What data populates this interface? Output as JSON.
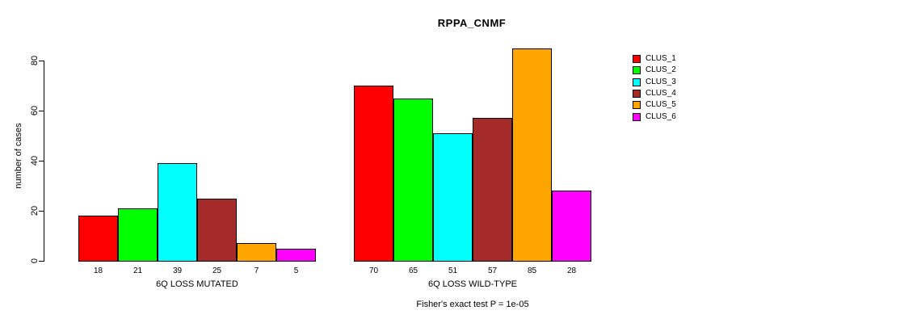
{
  "chart_data": {
    "type": "bar",
    "title": "RPPA_CNMF",
    "ylabel": "number of cases",
    "xlabel": "",
    "ylim": [
      0,
      80
    ],
    "yticks": [
      0,
      20,
      40,
      60,
      80
    ],
    "grid": false,
    "legend_position": "right",
    "bar_value_labels_shown": true,
    "categories": [
      "6Q LOSS MUTATED",
      "6Q LOSS WILD-TYPE"
    ],
    "series": [
      {
        "name": "CLUS_1",
        "color": "#FF0000",
        "values": [
          18,
          70
        ]
      },
      {
        "name": "CLUS_2",
        "color": "#00FF00",
        "values": [
          21,
          65
        ]
      },
      {
        "name": "CLUS_3",
        "color": "#00FFFF",
        "values": [
          39,
          51
        ]
      },
      {
        "name": "CLUS_4",
        "color": "#A52A2A",
        "values": [
          25,
          57
        ]
      },
      {
        "name": "CLUS_5",
        "color": "#FFA500",
        "values": [
          7,
          85
        ]
      },
      {
        "name": "CLUS_6",
        "color": "#FF00FF",
        "values": [
          5,
          28
        ]
      }
    ],
    "annotation": "Fisher's exact test P = 1e-05",
    "axis_color": "#000000",
    "background_color": "#FFFFFF"
  }
}
